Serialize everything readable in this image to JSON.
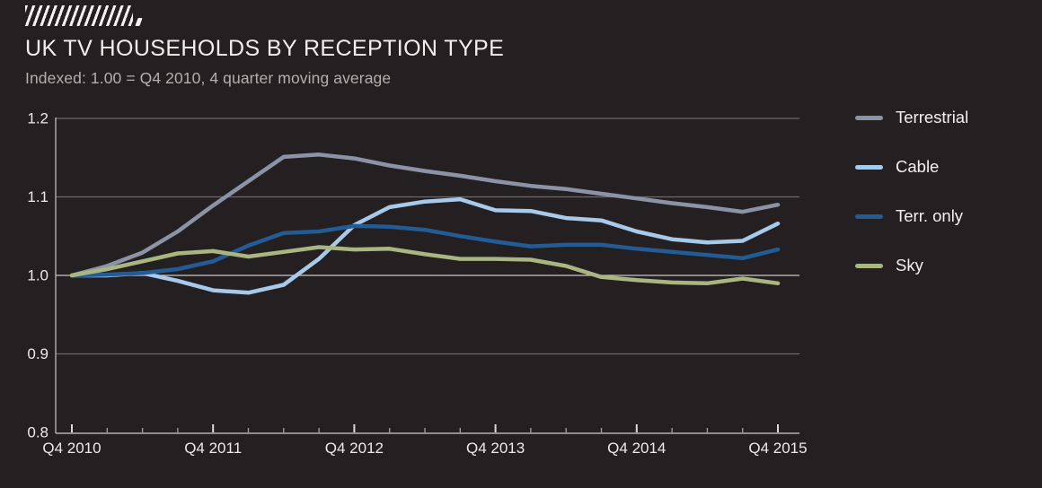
{
  "header": {
    "title": "UK TV HOUSEHOLDS BY RECEPTION TYPE",
    "subtitle": "Indexed: 1.00 = Q4 2010, 4 quarter moving average"
  },
  "chart_data": {
    "type": "line",
    "title": "UK TV HOUSEHOLDS BY RECEPTION TYPE",
    "subtitle": "Indexed: 1.00 = Q4 2010, 4 quarter moving average",
    "x": [
      "Q4 2010",
      "Q1 2011",
      "Q2 2011",
      "Q3 2011",
      "Q4 2011",
      "Q1 2012",
      "Q2 2012",
      "Q3 2012",
      "Q4 2012",
      "Q1 2013",
      "Q2 2013",
      "Q3 2013",
      "Q4 2013",
      "Q1 2014",
      "Q2 2014",
      "Q3 2014",
      "Q4 2014",
      "Q1 2015",
      "Q2 2015",
      "Q3 2015",
      "Q4 2015"
    ],
    "x_tick_labels": [
      "Q4 2010",
      "Q4 2011",
      "Q4 2012",
      "Q4 2013",
      "Q4 2014",
      "Q4 2015"
    ],
    "y_ticks": [
      0.8,
      0.9,
      1.0,
      1.1,
      1.2
    ],
    "ylim": [
      0.8,
      1.2
    ],
    "grid": true,
    "baseline_value": 1.0,
    "legend_position": "right",
    "series": [
      {
        "name": "Terrestrial",
        "color": "#8b94a6",
        "values": [
          1.0,
          1.012,
          1.029,
          1.056,
          1.089,
          1.12,
          1.151,
          1.154,
          1.149,
          1.14,
          1.133,
          1.127,
          1.12,
          1.114,
          1.11,
          1.104,
          1.098,
          1.092,
          1.087,
          1.081,
          1.09
        ]
      },
      {
        "name": "Cable",
        "color": "#a7c9ea",
        "values": [
          1.0,
          1.0,
          1.003,
          0.993,
          0.981,
          0.978,
          0.988,
          1.021,
          1.064,
          1.087,
          1.094,
          1.097,
          1.083,
          1.082,
          1.073,
          1.07,
          1.056,
          1.046,
          1.042,
          1.044,
          1.066
        ]
      },
      {
        "name": "Terr. only",
        "color": "#235c94",
        "values": [
          1.0,
          1.001,
          1.003,
          1.008,
          1.018,
          1.038,
          1.054,
          1.056,
          1.063,
          1.062,
          1.058,
          1.05,
          1.043,
          1.037,
          1.039,
          1.039,
          1.034,
          1.03,
          1.026,
          1.022,
          1.033
        ]
      },
      {
        "name": "Sky",
        "color": "#a9b681",
        "values": [
          1.0,
          1.008,
          1.018,
          1.028,
          1.031,
          1.024,
          1.03,
          1.036,
          1.033,
          1.034,
          1.027,
          1.021,
          1.021,
          1.02,
          1.012,
          0.998,
          0.994,
          0.991,
          0.99,
          0.996,
          0.99
        ]
      }
    ]
  }
}
